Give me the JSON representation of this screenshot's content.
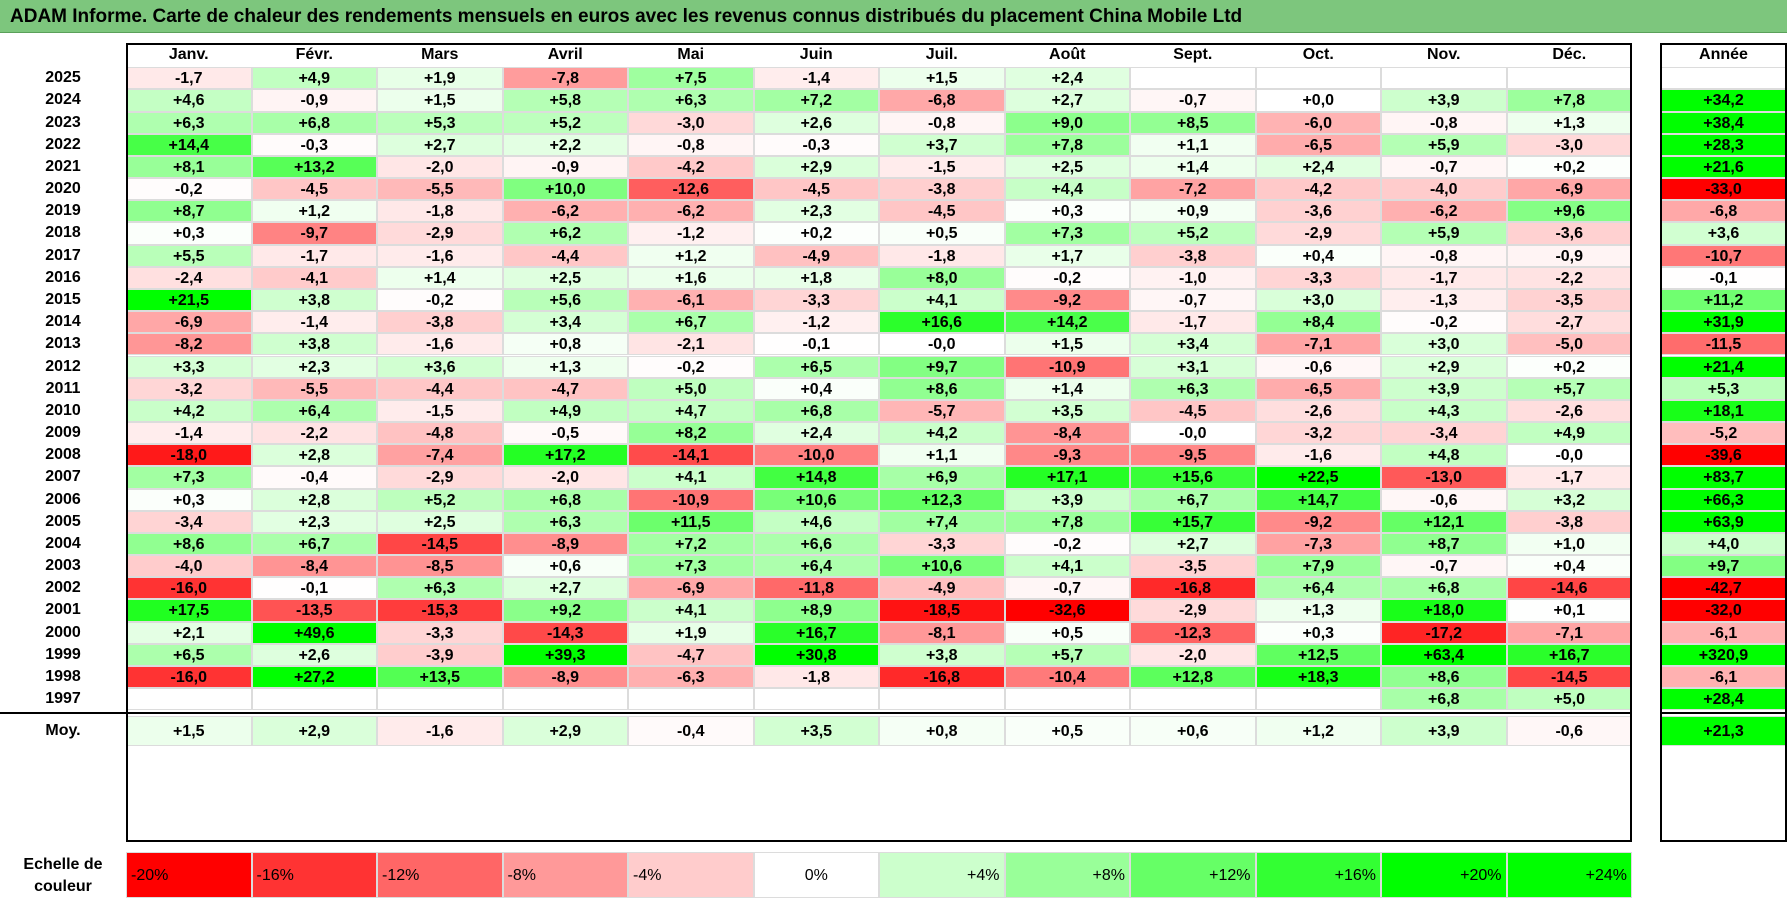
{
  "title": "ADAM Informe. Carte de chaleur des rendements mensuels en euros avec les revenus connus distribués du placement China Mobile Ltd",
  "chart_data": {
    "type": "heatmap",
    "title": "ADAM Informe. Carte de chaleur des rendements mensuels en euros avec les revenus connus distribués du placement China Mobile Ltd",
    "months": [
      "Janv.",
      "Févr.",
      "Mars",
      "Avril",
      "Mai",
      "Juin",
      "Juil.",
      "Août",
      "Sept.",
      "Oct.",
      "Nov.",
      "Déc."
    ],
    "year_header": "Année",
    "rows": [
      {
        "year": "2025",
        "values": [
          "-1,7",
          "+4,9",
          "+1,9",
          "-7,8",
          "+7,5",
          "-1,4",
          "+1,5",
          "+2,4",
          "",
          "",
          "",
          ""
        ],
        "annual": ""
      },
      {
        "year": "2024",
        "values": [
          "+4,6",
          "-0,9",
          "+1,5",
          "+5,8",
          "+6,3",
          "+7,2",
          "-6,8",
          "+2,7",
          "-0,7",
          "+0,0",
          "+3,9",
          "+7,8"
        ],
        "annual": "+34,2"
      },
      {
        "year": "2023",
        "values": [
          "+6,3",
          "+6,8",
          "+5,3",
          "+5,2",
          "-3,0",
          "+2,6",
          "-0,8",
          "+9,0",
          "+8,5",
          "-6,0",
          "-0,8",
          "+1,3"
        ],
        "annual": "+38,4"
      },
      {
        "year": "2022",
        "values": [
          "+14,4",
          "-0,3",
          "+2,7",
          "+2,2",
          "-0,8",
          "-0,3",
          "+3,7",
          "+7,8",
          "+1,1",
          "-6,5",
          "+5,9",
          "-3,0"
        ],
        "annual": "+28,3"
      },
      {
        "year": "2021",
        "values": [
          "+8,1",
          "+13,2",
          "-2,0",
          "-0,9",
          "-4,2",
          "+2,9",
          "-1,5",
          "+2,5",
          "+1,4",
          "+2,4",
          "-0,7",
          "+0,2"
        ],
        "annual": "+21,6"
      },
      {
        "year": "2020",
        "values": [
          "-0,2",
          "-4,5",
          "-5,5",
          "+10,0",
          "-12,6",
          "-4,5",
          "-3,8",
          "+4,4",
          "-7,2",
          "-4,2",
          "-4,0",
          "-6,9"
        ],
        "annual": "-33,0"
      },
      {
        "year": "2019",
        "values": [
          "+8,7",
          "+1,2",
          "-1,8",
          "-6,2",
          "-6,2",
          "+2,3",
          "-4,5",
          "+0,3",
          "+0,9",
          "-3,6",
          "-6,2",
          "+9,6"
        ],
        "annual": "-6,8"
      },
      {
        "year": "2018",
        "values": [
          "+0,3",
          "-9,7",
          "-2,9",
          "+6,2",
          "-1,2",
          "+0,2",
          "+0,5",
          "+7,3",
          "+5,2",
          "-2,9",
          "+5,9",
          "-3,6"
        ],
        "annual": "+3,6"
      },
      {
        "year": "2017",
        "values": [
          "+5,5",
          "-1,7",
          "-1,6",
          "-4,4",
          "+1,2",
          "-4,9",
          "-1,8",
          "+1,7",
          "-3,8",
          "+0,4",
          "-0,8",
          "-0,9"
        ],
        "annual": "-10,7"
      },
      {
        "year": "2016",
        "values": [
          "-2,4",
          "-4,1",
          "+1,4",
          "+2,5",
          "+1,6",
          "+1,8",
          "+8,0",
          "-0,2",
          "-1,0",
          "-3,3",
          "-1,7",
          "-2,2"
        ],
        "annual": "-0,1"
      },
      {
        "year": "2015",
        "values": [
          "+21,5",
          "+3,8",
          "-0,2",
          "+5,6",
          "-6,1",
          "-3,3",
          "+4,1",
          "-9,2",
          "-0,7",
          "+3,0",
          "-1,3",
          "-3,5"
        ],
        "annual": "+11,2"
      },
      {
        "year": "2014",
        "values": [
          "-6,9",
          "-1,4",
          "-3,8",
          "+3,4",
          "+6,7",
          "-1,2",
          "+16,6",
          "+14,2",
          "-1,7",
          "+8,4",
          "-0,2",
          "-2,7"
        ],
        "annual": "+31,9"
      },
      {
        "year": "2013",
        "values": [
          "-8,2",
          "+3,8",
          "-1,6",
          "+0,8",
          "-2,1",
          "-0,1",
          "-0,0",
          "+1,5",
          "+3,4",
          "-7,1",
          "+3,0",
          "-5,0"
        ],
        "annual": "-11,5"
      },
      {
        "year": "2012",
        "values": [
          "+3,3",
          "+2,3",
          "+3,6",
          "+1,3",
          "-0,2",
          "+6,5",
          "+9,7",
          "-10,9",
          "+3,1",
          "-0,6",
          "+2,9",
          "+0,2"
        ],
        "annual": "+21,4"
      },
      {
        "year": "2011",
        "values": [
          "-3,2",
          "-5,5",
          "-4,4",
          "-4,7",
          "+5,0",
          "+0,4",
          "+8,6",
          "+1,4",
          "+6,3",
          "-6,5",
          "+3,9",
          "+5,7"
        ],
        "annual": "+5,3"
      },
      {
        "year": "2010",
        "values": [
          "+4,2",
          "+6,4",
          "-1,5",
          "+4,9",
          "+4,7",
          "+6,8",
          "-5,7",
          "+3,5",
          "-4,5",
          "-2,6",
          "+4,3",
          "-2,6"
        ],
        "annual": "+18,1"
      },
      {
        "year": "2009",
        "values": [
          "-1,4",
          "-2,2",
          "-4,8",
          "-0,5",
          "+8,2",
          "+2,4",
          "+4,2",
          "-8,4",
          "-0,0",
          "-3,2",
          "-3,4",
          "+4,9"
        ],
        "annual": "-5,2"
      },
      {
        "year": "2008",
        "values": [
          "-18,0",
          "+2,8",
          "-7,4",
          "+17,2",
          "-14,1",
          "-10,0",
          "+1,1",
          "-9,3",
          "-9,5",
          "-1,6",
          "+4,8",
          "-0,0"
        ],
        "annual": "-39,6"
      },
      {
        "year": "2007",
        "values": [
          "+7,3",
          "-0,4",
          "-2,9",
          "-2,0",
          "+4,1",
          "+14,8",
          "+6,9",
          "+17,1",
          "+15,6",
          "+22,5",
          "-13,0",
          "-1,7"
        ],
        "annual": "+83,7"
      },
      {
        "year": "2006",
        "values": [
          "+0,3",
          "+2,8",
          "+5,2",
          "+6,8",
          "-10,9",
          "+10,6",
          "+12,3",
          "+3,9",
          "+6,7",
          "+14,7",
          "-0,6",
          "+3,2"
        ],
        "annual": "+66,3"
      },
      {
        "year": "2005",
        "values": [
          "-3,4",
          "+2,3",
          "+2,5",
          "+6,3",
          "+11,5",
          "+4,6",
          "+7,4",
          "+7,8",
          "+15,7",
          "-9,2",
          "+12,1",
          "-3,8"
        ],
        "annual": "+63,9"
      },
      {
        "year": "2004",
        "values": [
          "+8,6",
          "+6,7",
          "-14,5",
          "-8,9",
          "+7,2",
          "+6,6",
          "-3,3",
          "-0,2",
          "+2,7",
          "-7,3",
          "+8,7",
          "+1,0"
        ],
        "annual": "+4,0"
      },
      {
        "year": "2003",
        "values": [
          "-4,0",
          "-8,4",
          "-8,5",
          "+0,6",
          "+7,3",
          "+6,4",
          "+10,6",
          "+4,1",
          "-3,5",
          "+7,9",
          "-0,7",
          "+0,4"
        ],
        "annual": "+9,7"
      },
      {
        "year": "2002",
        "values": [
          "-16,0",
          "-0,1",
          "+6,3",
          "+2,7",
          "-6,9",
          "-11,8",
          "-4,9",
          "-0,7",
          "-16,8",
          "+6,4",
          "+6,8",
          "-14,6"
        ],
        "annual": "-42,7"
      },
      {
        "year": "2001",
        "values": [
          "+17,5",
          "-13,5",
          "-15,3",
          "+9,2",
          "+4,1",
          "+8,9",
          "-18,5",
          "-32,6",
          "-2,9",
          "+1,3",
          "+18,0",
          "+0,1"
        ],
        "annual": "-32,0"
      },
      {
        "year": "2000",
        "values": [
          "+2,1",
          "+49,6",
          "-3,3",
          "-14,3",
          "+1,9",
          "+16,7",
          "-8,1",
          "+0,5",
          "-12,3",
          "+0,3",
          "-17,2",
          "-7,1"
        ],
        "annual": "-6,1"
      },
      {
        "year": "1999",
        "values": [
          "+6,5",
          "+2,6",
          "-3,9",
          "+39,3",
          "-4,7",
          "+30,8",
          "+3,8",
          "+5,7",
          "-2,0",
          "+12,5",
          "+63,4",
          "+16,7"
        ],
        "annual": "+320,9"
      },
      {
        "year": "1998",
        "values": [
          "-16,0",
          "+27,2",
          "+13,5",
          "-8,9",
          "-6,3",
          "-1,8",
          "-16,8",
          "-10,4",
          "+12,8",
          "+18,3",
          "+8,6",
          "-14,5"
        ],
        "annual": "-6,1"
      },
      {
        "year": "1997",
        "values": [
          "",
          "",
          "",
          "",
          "",
          "",
          "",
          "",
          "",
          "",
          "+6,8",
          "+5,0"
        ],
        "annual": "+28,4"
      }
    ],
    "average": {
      "label": "Moy.",
      "values": [
        "+1,5",
        "+2,9",
        "-1,6",
        "+2,9",
        "-0,4",
        "+3,5",
        "+0,8",
        "+0,5",
        "+0,6",
        "+1,2",
        "+3,9",
        "-0,6"
      ],
      "annual": "+21,3"
    },
    "scale": {
      "label_line1": "Echelle de",
      "label_line2": "couleur",
      "steps": [
        {
          "label": "-20%",
          "color": "#ff0000",
          "align": "left"
        },
        {
          "label": "-16%",
          "color": "#ff3333",
          "align": "left"
        },
        {
          "label": "-12%",
          "color": "#ff6666",
          "align": "left"
        },
        {
          "label": "-8%",
          "color": "#ff9999",
          "align": "left"
        },
        {
          "label": "-4%",
          "color": "#ffcccc",
          "align": "left"
        },
        {
          "label": "0%",
          "color": "#ffffff",
          "align": "center"
        },
        {
          "label": "+4%",
          "color": "#ccffcc",
          "align": "right"
        },
        {
          "label": "+8%",
          "color": "#99ff99",
          "align": "right"
        },
        {
          "label": "+12%",
          "color": "#66ff66",
          "align": "right"
        },
        {
          "label": "+16%",
          "color": "#33ff33",
          "align": "right"
        },
        {
          "label": "+20%",
          "color": "#00ff00",
          "align": "right"
        },
        {
          "label": "+24%",
          "color": "#00ff00",
          "align": "right"
        }
      ]
    }
  }
}
